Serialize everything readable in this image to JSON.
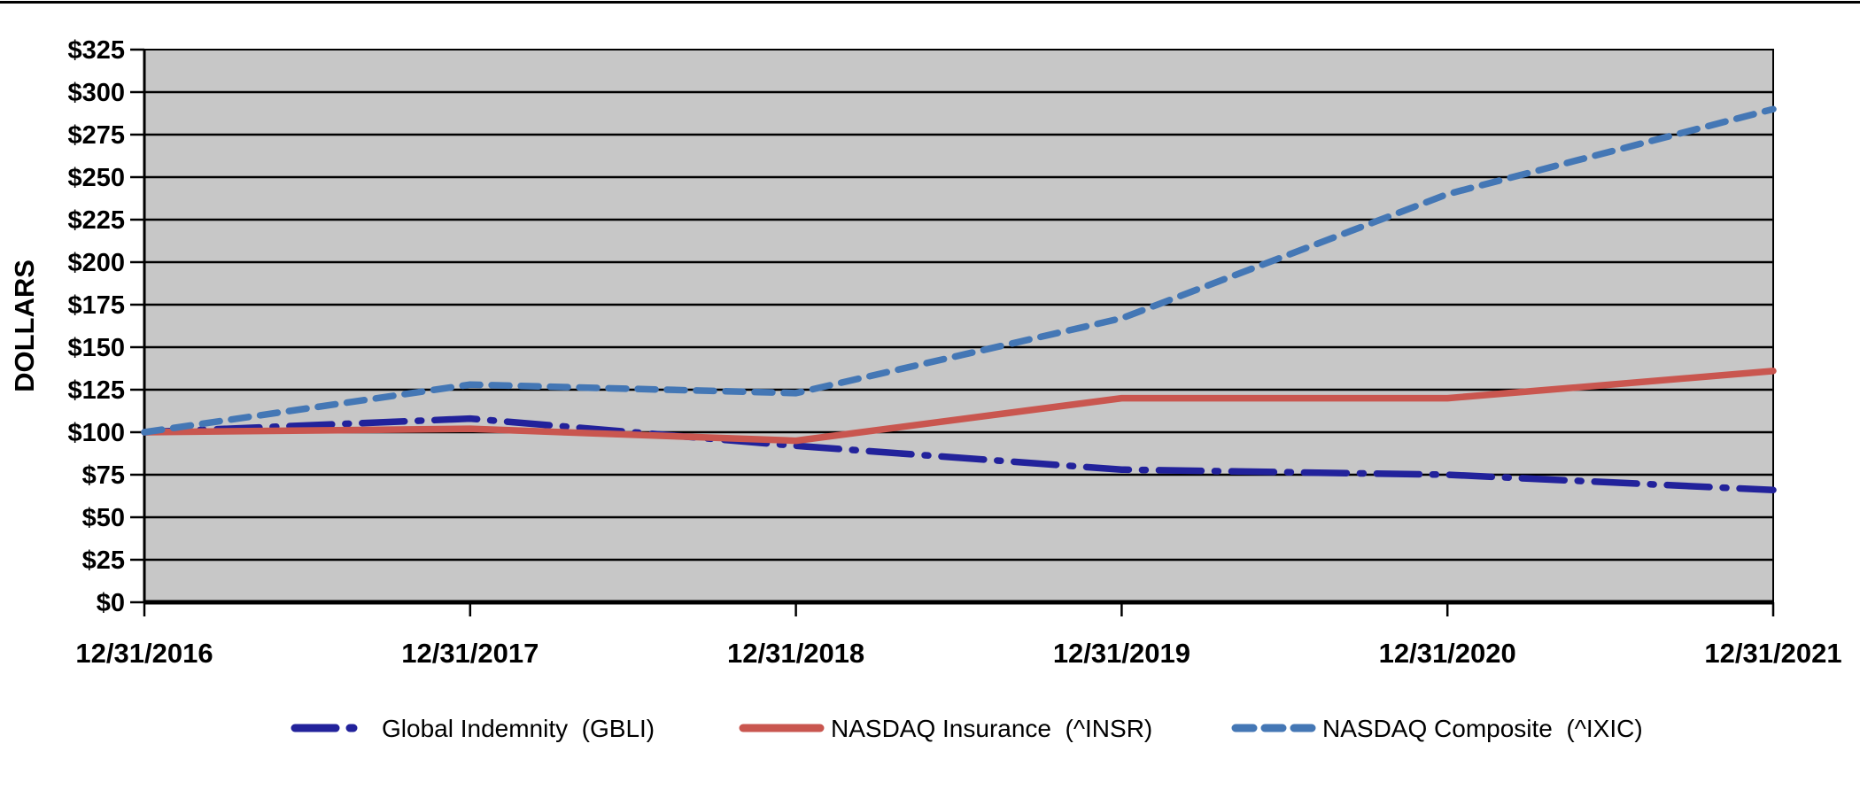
{
  "chart_data": {
    "type": "line",
    "title": "",
    "xlabel": "",
    "ylabel": "DOLLARS",
    "x": [
      "12/31/2016",
      "12/31/2017",
      "12/31/2018",
      "12/31/2019",
      "12/31/2020",
      "12/31/2021"
    ],
    "series": [
      {
        "name": "Global Indemnity  (GBLI)",
        "ticker": "GBLI",
        "values": [
          100,
          108,
          92,
          78,
          75,
          66
        ],
        "color": "#22229B",
        "style": "dash-dot"
      },
      {
        "name": "NASDAQ Insurance  (^INSR)",
        "ticker": "^INSR",
        "values": [
          100,
          102,
          95,
          120,
          120,
          136
        ],
        "color": "#C9564F",
        "style": "solid"
      },
      {
        "name": "NASDAQ Composite  (^IXIC)",
        "ticker": "^IXIC",
        "values": [
          100,
          128,
          123,
          167,
          240,
          290
        ],
        "color": "#4477B5",
        "style": "dashed"
      }
    ],
    "y_axis": {
      "min": 0,
      "max": 325,
      "step": 25,
      "tick_prefix": "$"
    },
    "ylim": [
      0,
      325
    ],
    "grid": true,
    "legend_position": "bottom",
    "colors": {
      "plot_bg": "#C7C7C7",
      "grid": "#000000",
      "axis": "#000000",
      "text": "#000000",
      "page_bg": "#FFFFFF"
    }
  }
}
